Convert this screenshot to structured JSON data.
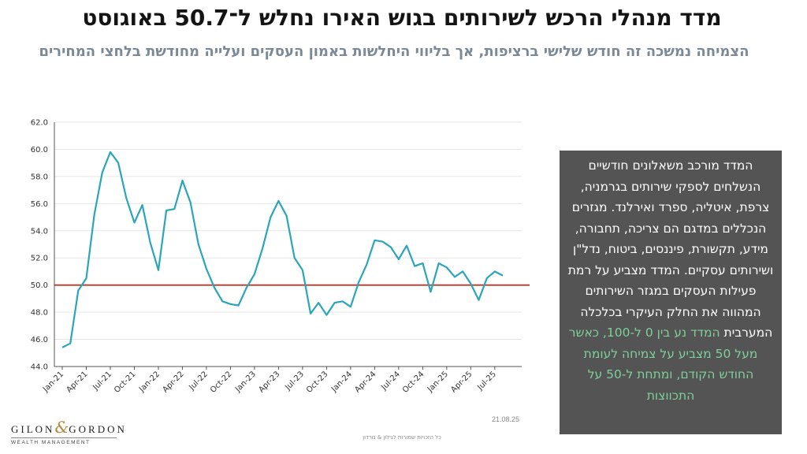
{
  "title": "מדד מנהלי הרכש לשירותים בגוש האירו נחלש ל־50.7 באוגוסט",
  "subtitle": "הצמיחה נמשכה זה חודש שלישי ברציפות, אך בליווי היחלשות באמון העסקים ועלייה מחודשת בלחצי המחירים",
  "info_box": {
    "text": "המדד מורכב משאלונים חודשיים הנשלחים לספקי שירותים בגרמניה, צרפת, איטליה, ספרד ואירלנד. מגזרים הנכללים במדגם הם צריכה, תחבורה, מידע, תקשורת, פיננסים, ביטוח, נדל\"ן ושירותים עסקיים. המדד מצביע על רמת פעילות העסקים במגזר השירותים המהווה את החלק העיקרי בכלכלה המערבית",
    "highlight": "המדד נע בין 0 ל-100, כאשר מעל 50 מצביע על צמיחה לעומת החודש הקודם, ומתחת ל-50 על התכווצות"
  },
  "logo": {
    "left": "GILON",
    "amp": "&",
    "right": "GORDON",
    "sub": "WEALTH MANAGEMENT"
  },
  "date_stamp": "21.08.25",
  "footer_note": "כל הזכויות שמורות לגילון & גורדון",
  "colors": {
    "line": "#2aa6b8",
    "reference": "#b33a2a",
    "grid": "#e6e6e6",
    "info_bg": "#545454",
    "highlight": "#7fcf9a",
    "subtitle": "#7a8898"
  },
  "chart_data": {
    "type": "line",
    "title": "",
    "xlabel": "",
    "ylabel": "",
    "ylim": [
      44.0,
      62.0
    ],
    "yticks": [
      "44.0",
      "46.0",
      "48.0",
      "50.0",
      "52.0",
      "54.0",
      "56.0",
      "58.0",
      "60.0",
      "62.0"
    ],
    "xticks": [
      "Jan-21",
      "Apr-21",
      "Jul-21",
      "Oct-21",
      "Jan-22",
      "Apr-22",
      "Jul-22",
      "Oct-22",
      "Jan-23",
      "Apr-23",
      "Jul-23",
      "Oct-23",
      "Jan-24",
      "Apr-24",
      "Jul-24",
      "Oct-24",
      "Jan-25",
      "Apr-25",
      "Jul-25"
    ],
    "reference_line": 50.0,
    "grid": true,
    "legend": "none",
    "x": [
      "Jan-21",
      "Feb-21",
      "Mar-21",
      "Apr-21",
      "May-21",
      "Jun-21",
      "Jul-21",
      "Aug-21",
      "Sep-21",
      "Oct-21",
      "Nov-21",
      "Dec-21",
      "Jan-22",
      "Feb-22",
      "Mar-22",
      "Apr-22",
      "May-22",
      "Jun-22",
      "Jul-22",
      "Aug-22",
      "Sep-22",
      "Oct-22",
      "Nov-22",
      "Dec-22",
      "Jan-23",
      "Feb-23",
      "Mar-23",
      "Apr-23",
      "May-23",
      "Jun-23",
      "Jul-23",
      "Aug-23",
      "Sep-23",
      "Oct-23",
      "Nov-23",
      "Dec-23",
      "Jan-24",
      "Feb-24",
      "Mar-24",
      "Apr-24",
      "May-24",
      "Jun-24",
      "Jul-24",
      "Aug-24",
      "Sep-24",
      "Oct-24",
      "Nov-24",
      "Dec-24",
      "Jan-25",
      "Feb-25",
      "Mar-25",
      "Apr-25",
      "May-25",
      "Jun-25",
      "Jul-25",
      "Aug-25"
    ],
    "series": [
      {
        "values": [
          45.4,
          45.7,
          49.6,
          50.5,
          55.2,
          58.3,
          59.8,
          59.0,
          56.4,
          54.6,
          55.9,
          53.1,
          51.1,
          55.5,
          55.6,
          57.7,
          56.1,
          53.0,
          51.2,
          49.8,
          48.8,
          48.6,
          48.5,
          49.8,
          50.8,
          52.7,
          55.0,
          56.2,
          55.1,
          52.0,
          51.1,
          47.9,
          48.7,
          47.8,
          48.7,
          48.8,
          48.4,
          50.2,
          51.5,
          53.3,
          53.2,
          52.8,
          51.9,
          52.9,
          51.4,
          51.6,
          49.5,
          51.6,
          51.3,
          50.6,
          51.0,
          50.1,
          48.9,
          50.5,
          51.0,
          50.7
        ]
      }
    ]
  }
}
